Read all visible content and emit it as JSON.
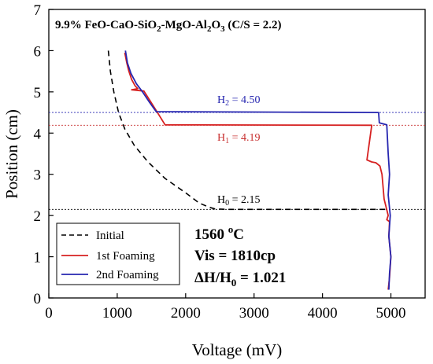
{
  "chart_data": {
    "type": "line",
    "title": "9.9% FeO-CaO-SiO2-MgO-Al2O3 (C/S = 2.2)",
    "xlabel": "Voltage (mV)",
    "ylabel": "Position (cm)",
    "xlim": [
      0,
      5500
    ],
    "ylim": [
      0,
      7
    ],
    "xticks": [
      0,
      1000,
      2000,
      3000,
      4000,
      5000
    ],
    "yticks": [
      0,
      1,
      2,
      3,
      4,
      5,
      6,
      7
    ],
    "legend_position": "bottom-left",
    "series": [
      {
        "name": "Initial",
        "color": "#000000",
        "dash": "dashed",
        "points": [
          [
            870,
            6.0
          ],
          [
            900,
            5.5
          ],
          [
            950,
            5.0
          ],
          [
            1020,
            4.5
          ],
          [
            1110,
            4.1
          ],
          [
            1250,
            3.7
          ],
          [
            1450,
            3.3
          ],
          [
            1700,
            2.9
          ],
          [
            2000,
            2.55
          ],
          [
            2200,
            2.3
          ],
          [
            2350,
            2.2
          ],
          [
            2430,
            2.16
          ],
          [
            2600,
            2.15
          ],
          [
            4980,
            2.15
          ]
        ]
      },
      {
        "name": "1st Foaming",
        "color": "#d62020",
        "dash": "solid",
        "points": [
          [
            1110,
            5.95
          ],
          [
            1140,
            5.7
          ],
          [
            1170,
            5.5
          ],
          [
            1210,
            5.3
          ],
          [
            1260,
            5.15
          ],
          [
            1300,
            5.08
          ],
          [
            1210,
            5.05
          ],
          [
            1390,
            5.02
          ],
          [
            1550,
            4.6
          ],
          [
            1700,
            4.2
          ],
          [
            4720,
            4.19
          ],
          [
            4650,
            3.35
          ],
          [
            4720,
            3.3
          ],
          [
            4780,
            3.28
          ],
          [
            4840,
            3.2
          ],
          [
            4870,
            3.0
          ],
          [
            4880,
            2.8
          ],
          [
            4890,
            2.6
          ],
          [
            4900,
            2.4
          ],
          [
            4930,
            2.2
          ],
          [
            4960,
            2.0
          ],
          [
            4940,
            1.9
          ],
          [
            4980,
            1.85
          ],
          [
            4970,
            1.5
          ],
          [
            5000,
            1.0
          ],
          [
            4980,
            0.5
          ],
          [
            4960,
            0.2
          ]
        ]
      },
      {
        "name": "2nd Foaming",
        "color": "#2626b0",
        "dash": "solid",
        "points": [
          [
            1120,
            6.0
          ],
          [
            1150,
            5.7
          ],
          [
            1200,
            5.45
          ],
          [
            1280,
            5.2
          ],
          [
            1370,
            5.0
          ],
          [
            1470,
            4.75
          ],
          [
            1570,
            4.52
          ],
          [
            4820,
            4.5
          ],
          [
            4830,
            4.25
          ],
          [
            4940,
            4.2
          ],
          [
            4960,
            3.5
          ],
          [
            4980,
            3.0
          ],
          [
            4960,
            2.5
          ],
          [
            4990,
            2.0
          ],
          [
            4970,
            1.5
          ],
          [
            5000,
            1.0
          ],
          [
            4980,
            0.6
          ],
          [
            4970,
            0.2
          ]
        ]
      }
    ],
    "reference_lines": [
      {
        "y": 4.5,
        "label": "H2 = 4.50",
        "color": "#2626b0",
        "label_x": 2900,
        "label_y": 4.55
      },
      {
        "y": 4.19,
        "label": "H1 = 4.19",
        "color": "#c83030",
        "label_x": 2900,
        "label_y": 3.88
      },
      {
        "y": 2.15,
        "label": "H0 = 2.15",
        "color": "#000000",
        "label_x": 2900,
        "label_y": 2.25
      }
    ],
    "annotations": [
      {
        "text": "1560 °C"
      },
      {
        "text": "Vis = 1810cp"
      },
      {
        "text": "ΔH/H0 = 1.021"
      }
    ]
  }
}
